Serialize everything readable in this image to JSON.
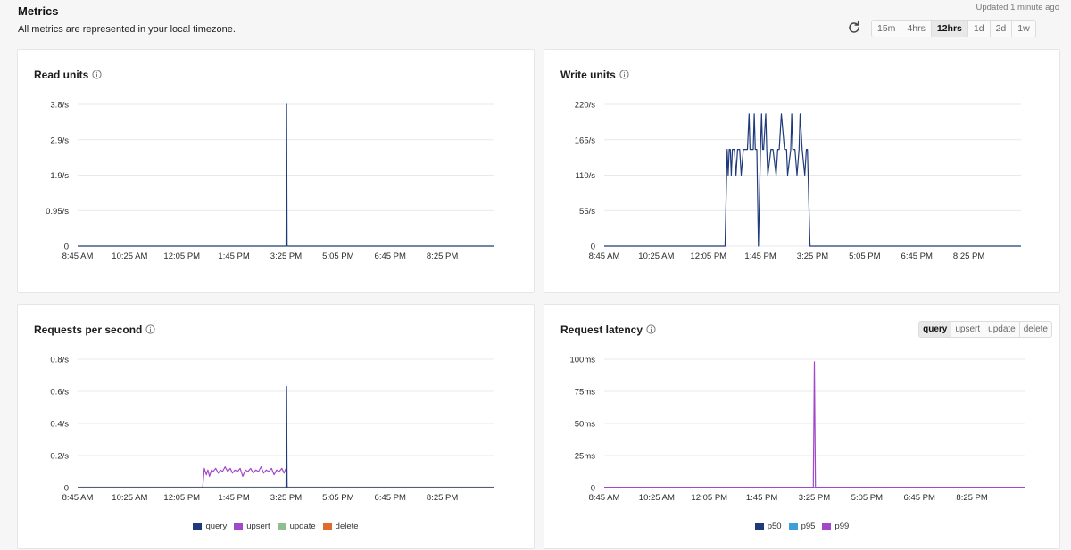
{
  "header": {
    "title": "Metrics",
    "subtitle": "All metrics are represented in your local timezone.",
    "updated": "Updated 1 minute ago",
    "refresh_icon": "refresh-icon",
    "ranges": [
      {
        "label": "15m",
        "active": false
      },
      {
        "label": "4hrs",
        "active": false
      },
      {
        "label": "12hrs",
        "active": true
      },
      {
        "label": "1d",
        "active": false
      },
      {
        "label": "2d",
        "active": false
      },
      {
        "label": "1w",
        "active": false
      }
    ]
  },
  "colors": {
    "query": "#1f3a7a",
    "upsert": "#a347c9",
    "update": "#8fbf8f",
    "delete": "#e06a2b",
    "p50": "#1f3a7a",
    "p95": "#3d9fd8",
    "p99": "#a347c9",
    "grid": "#e9e9e9"
  },
  "latency_ops": [
    {
      "label": "query",
      "active": true
    },
    {
      "label": "upsert",
      "active": false
    },
    {
      "label": "update",
      "active": false
    },
    {
      "label": "delete",
      "active": false
    }
  ],
  "chart_data": [
    {
      "id": "read",
      "type": "line",
      "title": "Read units",
      "info_icon": "info-icon",
      "x_ticks": [
        "8:45 AM",
        "10:25 AM",
        "12:05 PM",
        "1:45 PM",
        "3:25 PM",
        "5:05 PM",
        "6:45 PM",
        "8:25 PM"
      ],
      "x_range": [
        0,
        8
      ],
      "y_ticks": [
        "0",
        "0.95/s",
        "1.9/s",
        "2.9/s",
        "3.8/s"
      ],
      "ylim": [
        0,
        3.8
      ],
      "grid": true,
      "series": [
        {
          "key": "query",
          "color_key": "query",
          "x": [
            0,
            4.0,
            4.01,
            4.02,
            8.1
          ],
          "y": [
            0,
            0,
            3.8,
            0,
            0
          ]
        }
      ]
    },
    {
      "id": "write",
      "type": "line",
      "title": "Write units",
      "info_icon": "info-icon",
      "x_ticks": [
        "8:45 AM",
        "10:25 AM",
        "12:05 PM",
        "1:45 PM",
        "3:25 PM",
        "5:05 PM",
        "6:45 PM",
        "8:25 PM"
      ],
      "x_range": [
        0,
        8
      ],
      "y_ticks": [
        "0",
        "55/s",
        "110/s",
        "165/s",
        "220/s"
      ],
      "ylim": [
        0,
        220
      ],
      "grid": true,
      "series": [
        {
          "key": "query",
          "color_key": "query",
          "x": [
            0,
            2.32,
            2.36,
            2.38,
            2.4,
            2.42,
            2.44,
            2.46,
            2.5,
            2.53,
            2.56,
            2.6,
            2.63,
            2.67,
            2.75,
            2.78,
            2.8,
            2.86,
            2.88,
            2.9,
            2.93,
            2.96,
            3.0,
            3.02,
            3.04,
            3.06,
            3.1,
            3.12,
            3.14,
            3.2,
            3.24,
            3.3,
            3.33,
            3.36,
            3.4,
            3.46,
            3.5,
            3.52,
            3.58,
            3.6,
            3.62,
            3.66,
            3.7,
            3.74,
            3.76,
            3.8,
            3.85,
            3.88,
            3.9,
            3.95,
            8.1
          ],
          "y": [
            0,
            0,
            150,
            110,
            150,
            150,
            110,
            150,
            150,
            110,
            150,
            150,
            110,
            150,
            150,
            205,
            150,
            150,
            205,
            150,
            150,
            0,
            150,
            205,
            150,
            150,
            205,
            150,
            110,
            150,
            150,
            110,
            150,
            150,
            205,
            150,
            150,
            110,
            150,
            205,
            150,
            150,
            110,
            150,
            205,
            150,
            110,
            150,
            150,
            0,
            0
          ]
        }
      ]
    },
    {
      "id": "rps",
      "type": "line",
      "title": "Requests per second",
      "info_icon": "info-icon",
      "x_ticks": [
        "8:45 AM",
        "10:25 AM",
        "12:05 PM",
        "1:45 PM",
        "3:25 PM",
        "5:05 PM",
        "6:45 PM",
        "8:25 PM"
      ],
      "x_range": [
        0,
        8
      ],
      "y_ticks": [
        "0",
        "0.2/s",
        "0.4/s",
        "0.6/s",
        "0.8/s"
      ],
      "ylim": [
        0,
        0.8
      ],
      "grid": true,
      "legend": [
        {
          "label": "query",
          "color_key": "query"
        },
        {
          "label": "upsert",
          "color_key": "upsert"
        },
        {
          "label": "update",
          "color_key": "update"
        },
        {
          "label": "delete",
          "color_key": "delete"
        }
      ],
      "series": [
        {
          "key": "delete",
          "color_key": "delete",
          "x": [
            0,
            8.1
          ],
          "y": [
            0.003,
            0.003
          ]
        },
        {
          "key": "update",
          "color_key": "update",
          "x": [
            0,
            8.1
          ],
          "y": [
            0.002,
            0.002
          ]
        },
        {
          "key": "upsert",
          "color_key": "upsert",
          "x": [
            0,
            2.4,
            2.43,
            2.47,
            2.5,
            2.53,
            2.57,
            2.6,
            2.65,
            2.7,
            2.74,
            2.78,
            2.83,
            2.88,
            2.93,
            2.97,
            3.02,
            3.07,
            3.12,
            3.17,
            3.22,
            3.27,
            3.32,
            3.37,
            3.42,
            3.47,
            3.52,
            3.57,
            3.62,
            3.67,
            3.72,
            3.77,
            3.82,
            3.87,
            3.92,
            3.96,
            4.0,
            4.02,
            8.1
          ],
          "y": [
            0,
            0,
            0.12,
            0.08,
            0.11,
            0.07,
            0.11,
            0.1,
            0.12,
            0.09,
            0.11,
            0.1,
            0.13,
            0.1,
            0.12,
            0.09,
            0.11,
            0.1,
            0.12,
            0.07,
            0.11,
            0.1,
            0.12,
            0.09,
            0.11,
            0.1,
            0.13,
            0.09,
            0.11,
            0.1,
            0.12,
            0.08,
            0.11,
            0.1,
            0.12,
            0.09,
            0.12,
            0,
            0
          ]
        },
        {
          "key": "query",
          "color_key": "query",
          "x": [
            0,
            4.0,
            4.01,
            4.02,
            8.1
          ],
          "y": [
            0,
            0,
            0.63,
            0,
            0
          ]
        }
      ]
    },
    {
      "id": "latency",
      "type": "line",
      "title": "Request latency",
      "info_icon": "info-icon",
      "x_ticks": [
        "8:45 AM",
        "10:25 AM",
        "12:05 PM",
        "1:45 PM",
        "3:25 PM",
        "5:05 PM",
        "6:45 PM",
        "8:25 PM"
      ],
      "x_range": [
        0,
        8
      ],
      "y_ticks": [
        "0",
        "25ms",
        "50ms",
        "75ms",
        "100ms"
      ],
      "ylim": [
        0,
        100
      ],
      "grid": true,
      "legend": [
        {
          "label": "p50",
          "color_key": "p50"
        },
        {
          "label": "p95",
          "color_key": "p95"
        },
        {
          "label": "p99",
          "color_key": "p99"
        }
      ],
      "series": [
        {
          "key": "p50",
          "color_key": "p50",
          "x": [
            0,
            8.1
          ],
          "y": [
            0.3,
            0.3
          ]
        },
        {
          "key": "p95",
          "color_key": "p95",
          "x": [
            0,
            8.1
          ],
          "y": [
            0.3,
            0.3
          ]
        },
        {
          "key": "p99",
          "color_key": "p99",
          "x": [
            0,
            3.98,
            4.0,
            4.02,
            8.1
          ],
          "y": [
            0.3,
            0.3,
            98,
            0.3,
            0.3
          ]
        }
      ]
    }
  ]
}
